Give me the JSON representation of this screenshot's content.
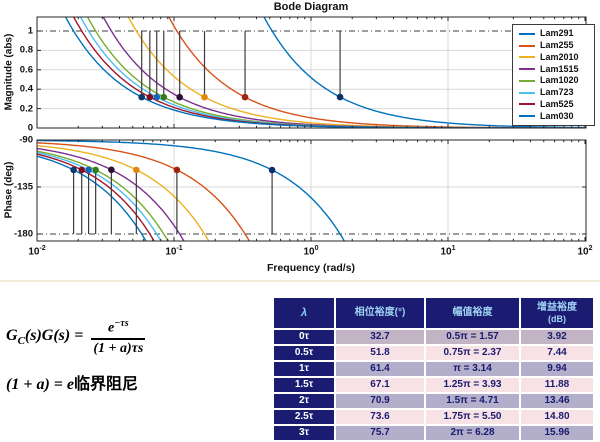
{
  "chart_data": {
    "type": "line",
    "title": "Bode Diagram",
    "xlabel": "Frequency  (rad/s)",
    "x_scale": "log",
    "x_range": [
      0.01,
      100
    ],
    "x_tick_exponents": [
      -2,
      -1,
      0,
      1,
      2
    ],
    "grid": true,
    "legend_position": "northeast",
    "subplots": [
      {
        "name": "magnitude",
        "ylabel": "Magnitude (abs)",
        "ylim": [
          0,
          1.14
        ],
        "yticks": [
          0,
          0.2,
          0.4,
          0.6,
          0.8,
          1
        ],
        "reference_line": 1.0
      },
      {
        "name": "phase",
        "ylabel": "Phase (deg)",
        "ylim": [
          -184,
          -90
        ],
        "yticks": [
          -90,
          -135,
          -180
        ],
        "reference_line": -180
      }
    ],
    "marker_magnitude_at_phase_crossover": 0.32,
    "marker_phase_at_gain_crossover_deg": -118.6,
    "series": [
      {
        "name": "Lam291",
        "color": "#0072BD",
        "marker_color": "#0b2f6b",
        "gain_crossover": 0.52,
        "phase_crossover": 1.63
      },
      {
        "name": "Lam255",
        "color": "#D95319",
        "marker_color": "#9e2410",
        "gain_crossover": 0.105,
        "phase_crossover": 0.33
      },
      {
        "name": "Lam2010",
        "color": "#EDB120",
        "marker_color": "#e0880b",
        "gain_crossover": 0.0531,
        "phase_crossover": 0.167
      },
      {
        "name": "Lam1515",
        "color": "#7E2F8E",
        "marker_color": "#2a1033",
        "gain_crossover": 0.0349,
        "phase_crossover": 0.11
      },
      {
        "name": "Lam1020",
        "color": "#77AC30",
        "marker_color": "#2f7d1e",
        "gain_crossover": 0.0268,
        "phase_crossover": 0.0842
      },
      {
        "name": "Lam723",
        "color": "#4DBEEE",
        "marker_color": "#1565c0",
        "gain_crossover": 0.0238,
        "phase_crossover": 0.0748
      },
      {
        "name": "Lam525",
        "color": "#A2142F",
        "marker_color": "#7c1020",
        "gain_crossover": 0.0212,
        "phase_crossover": 0.0666
      },
      {
        "name": "Lam030",
        "color": "#0072BD",
        "marker_color": "#0d3a6e",
        "gain_crossover": 0.0185,
        "phase_crossover": 0.0581
      }
    ]
  },
  "formula": {
    "lhs_g": "G",
    "lhs_sub": "C",
    "lhs_rest": "(s)G(s) =",
    "num_base": "e",
    "num_exp": "−τs",
    "den": "(1 + a)τs",
    "line2_math": "(1 + a) = e",
    "line2_cn": "临界阻尼"
  },
  "table": {
    "headers": {
      "lambda": "λ",
      "phase_margin": "相位裕度(°)",
      "amplitude_margin": "幅值裕度",
      "gain_margin": "增益裕度",
      "gain_margin_unit": "(dB)"
    },
    "rows": [
      {
        "lambda": "0τ",
        "pm": "32.7",
        "am": "0.5π = 1.57",
        "gm": "3.92",
        "bg": "#c2b4c4"
      },
      {
        "lambda": "0.5τ",
        "pm": "51.8",
        "am": "0.75π = 2.37",
        "gm": "7.44",
        "bg": "#f7e3e6"
      },
      {
        "lambda": "1τ",
        "pm": "61.4",
        "am": "π = 3.14",
        "gm": "9.94",
        "bg": "#b3aeca"
      },
      {
        "lambda": "1.5τ",
        "pm": "67.1",
        "am": "1.25π = 3.93",
        "gm": "11.88",
        "bg": "#f7e3e6"
      },
      {
        "lambda": "2τ",
        "pm": "70.9",
        "am": "1.5π = 4.71",
        "gm": "13.46",
        "bg": "#b3aeca"
      },
      {
        "lambda": "2.5τ",
        "pm": "73.6",
        "am": "1.75π = 5.50",
        "gm": "14.80",
        "bg": "#f7e3e6"
      },
      {
        "lambda": "3τ",
        "pm": "75.7",
        "am": "2π = 6.28",
        "gm": "15.96",
        "bg": "#b3aeca"
      }
    ]
  },
  "colors": {
    "table_header_bg": "#1b1b72",
    "table_header_text": "#9fd2f2",
    "table_data_text": "#1a1a70",
    "grid": "#d8d8d8",
    "axis": "#262626",
    "stem": "#3c3c3c",
    "divider": "#f2ecd8"
  }
}
